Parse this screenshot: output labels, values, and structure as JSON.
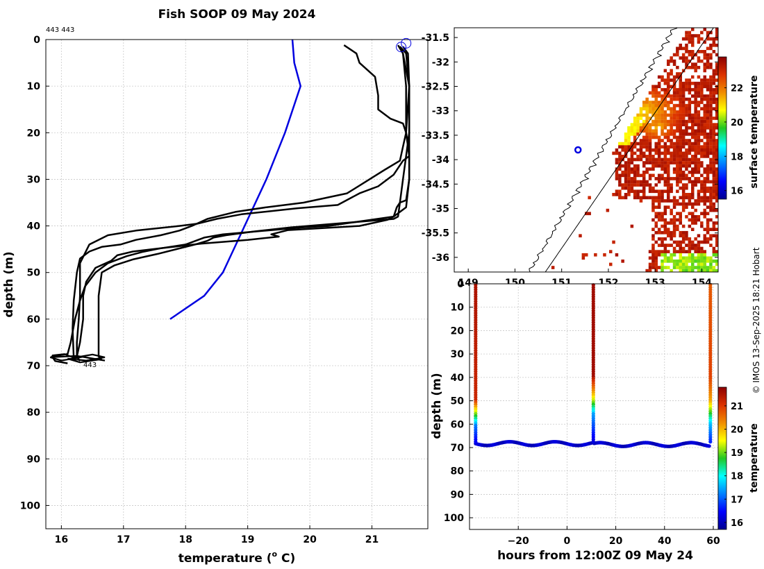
{
  "title": "Fish SOOP 09 May 2024",
  "credit": "© IMOS 13-Sep-2025 18:21 Hobart",
  "chart_data": [
    {
      "id": "profile",
      "type": "line",
      "top_label": "443 443",
      "end_label": "443",
      "xlabel": "temperature (°C)",
      "xlabel_main": "temperature (",
      "xlabel_sup": "o",
      "xlabel_tail": " C)",
      "ylabel": "depth (m)",
      "xlim": [
        15.75,
        21.9
      ],
      "ylim": [
        105,
        0
      ],
      "xticks": [
        16,
        17,
        18,
        19,
        20,
        21
      ],
      "yticks": [
        0,
        10,
        20,
        30,
        40,
        50,
        60,
        70,
        80,
        90,
        100
      ],
      "grid": true,
      "series": [
        {
          "name": "climatology",
          "color": "#0000e0",
          "points": [
            [
              19.72,
              0
            ],
            [
              19.75,
              5
            ],
            [
              19.85,
              10
            ],
            [
              19.6,
              20
            ],
            [
              19.3,
              30
            ],
            [
              18.95,
              40
            ],
            [
              18.6,
              50
            ],
            [
              18.3,
              55
            ],
            [
              17.75,
              60
            ]
          ]
        },
        {
          "name": "cast 1",
          "color": "#000000",
          "points": [
            [
              20.55,
              1.2
            ],
            [
              20.75,
              3
            ],
            [
              20.8,
              5
            ],
            [
              21.05,
              8
            ],
            [
              21.1,
              12
            ],
            [
              21.1,
              15
            ],
            [
              21.3,
              17
            ],
            [
              21.5,
              18
            ],
            [
              21.55,
              20
            ],
            [
              21.6,
              24
            ],
            [
              21.6,
              30
            ],
            [
              21.55,
              36
            ],
            [
              21.35,
              38
            ],
            [
              20.3,
              40
            ],
            [
              19.9,
              40.3
            ],
            [
              18.6,
              41.8
            ],
            [
              18.3,
              42.5
            ],
            [
              18.0,
              44
            ],
            [
              17.6,
              44.8
            ],
            [
              17.15,
              45.5
            ],
            [
              16.9,
              46.3
            ],
            [
              16.8,
              47.5
            ],
            [
              16.55,
              49
            ],
            [
              16.4,
              52
            ],
            [
              16.35,
              55
            ],
            [
              16.35,
              60
            ],
            [
              16.3,
              65
            ],
            [
              16.25,
              68
            ],
            [
              16.3,
              69
            ]
          ]
        },
        {
          "name": "cast 2",
          "color": "#000000",
          "points": [
            [
              21.42,
              1.2
            ],
            [
              21.5,
              3
            ],
            [
              21.6,
              10
            ],
            [
              21.55,
              20
            ],
            [
              21.6,
              25
            ],
            [
              21.5,
              26
            ],
            [
              21.35,
              29
            ],
            [
              21.1,
              31.5
            ],
            [
              20.8,
              33
            ],
            [
              20.45,
              35.5
            ],
            [
              19.8,
              36.2
            ],
            [
              18.9,
              37.5
            ],
            [
              18.5,
              38.5
            ],
            [
              18.2,
              39.5
            ],
            [
              17.9,
              40
            ],
            [
              17.2,
              41
            ],
            [
              16.75,
              42
            ],
            [
              16.45,
              44
            ],
            [
              16.3,
              48
            ],
            [
              16.3,
              55
            ],
            [
              16.28,
              60
            ],
            [
              16.25,
              65
            ],
            [
              16.25,
              68.5
            ]
          ]
        },
        {
          "name": "cast 3",
          "color": "#000000",
          "points": [
            [
              21.45,
              1.5
            ],
            [
              21.5,
              3
            ],
            [
              21.55,
              10
            ],
            [
              21.55,
              20
            ],
            [
              21.5,
              23
            ],
            [
              21.45,
              26
            ],
            [
              21.2,
              28
            ],
            [
              20.9,
              30.5
            ],
            [
              20.6,
              33
            ],
            [
              19.9,
              35
            ],
            [
              19.3,
              36
            ],
            [
              18.8,
              37
            ],
            [
              18.35,
              38.5
            ],
            [
              18.1,
              40
            ],
            [
              17.9,
              41
            ],
            [
              17.6,
              42
            ],
            [
              17.2,
              43
            ],
            [
              16.95,
              44
            ],
            [
              16.65,
              44.5
            ],
            [
              16.45,
              45.5
            ],
            [
              16.3,
              47
            ],
            [
              16.25,
              50
            ],
            [
              16.2,
              56
            ],
            [
              16.18,
              62
            ],
            [
              16.2,
              68.5
            ]
          ]
        },
        {
          "name": "cast 4",
          "color": "#000000",
          "points": [
            [
              21.45,
              1.5
            ],
            [
              21.55,
              3
            ],
            [
              21.6,
              10
            ],
            [
              21.6,
              20
            ],
            [
              21.6,
              30
            ],
            [
              21.55,
              34.5
            ],
            [
              21.45,
              35
            ],
            [
              21.4,
              36
            ],
            [
              21.35,
              38
            ],
            [
              21.25,
              38.7
            ],
            [
              20.8,
              40
            ],
            [
              19.65,
              40.9
            ],
            [
              19.38,
              41.8
            ],
            [
              19.5,
              42.3
            ],
            [
              19.0,
              43
            ],
            [
              18.25,
              43.8
            ],
            [
              17.6,
              44.8
            ],
            [
              17.3,
              45.6
            ],
            [
              17.05,
              46.5
            ],
            [
              16.75,
              48
            ],
            [
              16.55,
              50
            ],
            [
              16.38,
              53
            ],
            [
              16.3,
              56
            ],
            [
              16.22,
              60
            ],
            [
              16.15,
              65
            ],
            [
              16.1,
              67.5
            ],
            [
              15.85,
              68
            ],
            [
              15.9,
              69
            ],
            [
              16.1,
              69.5
            ]
          ]
        },
        {
          "name": "cast 5",
          "color": "#000000",
          "points": [
            [
              21.5,
              1.5
            ],
            [
              21.58,
              3
            ],
            [
              21.6,
              10
            ],
            [
              21.6,
              20
            ],
            [
              21.55,
              25
            ],
            [
              21.5,
              30
            ],
            [
              21.45,
              35
            ],
            [
              21.42,
              38
            ],
            [
              21.35,
              38.5
            ],
            [
              20.7,
              39.2
            ],
            [
              19.7,
              40.3
            ],
            [
              19.1,
              41.2
            ],
            [
              18.65,
              42
            ],
            [
              18.45,
              42.5
            ],
            [
              18.35,
              43.2
            ],
            [
              18.15,
              44
            ],
            [
              17.85,
              45
            ],
            [
              17.55,
              46
            ],
            [
              17.15,
              47.2
            ],
            [
              16.85,
              48.5
            ],
            [
              16.65,
              50
            ],
            [
              16.6,
              55
            ],
            [
              16.6,
              60
            ],
            [
              16.6,
              65
            ],
            [
              16.6,
              68
            ],
            [
              16.65,
              68.8
            ]
          ]
        }
      ]
    },
    {
      "id": "map",
      "type": "heatmap",
      "colorbar_label": "surface temperature",
      "colorbar_ticks": [
        16,
        18,
        20,
        22
      ],
      "colorbar_range": [
        15.5,
        23.8
      ],
      "xticks": [
        149,
        150,
        151,
        152,
        153,
        154
      ],
      "yticks": [
        -31.5,
        -32,
        -32.5,
        -33,
        -33.5,
        -34,
        -34.5,
        -35,
        -35.5,
        -36
      ],
      "xlim": [
        148.7,
        154.35
      ],
      "ylim": [
        -36.3,
        -31.3
      ],
      "ship_position": {
        "lon": 151.35,
        "lat": -33.8
      }
    },
    {
      "id": "timeseries",
      "type": "scatter",
      "xlabel": "hours from 12:00Z 09 May 24",
      "ylabel": "depth (m)",
      "colorbar_label": "temperature",
      "colorbar_ticks": [
        16,
        17,
        18,
        19,
        20,
        21
      ],
      "colorbar_range": [
        15.7,
        21.8
      ],
      "xticks": [
        -20,
        0,
        20,
        40,
        60
      ],
      "yticks": [
        0,
        10,
        20,
        30,
        40,
        50,
        60,
        70,
        80,
        90,
        100
      ],
      "xlim": [
        -40,
        62
      ],
      "ylim": [
        105,
        0
      ],
      "profiles_at_hours": [
        -37.5,
        10.8,
        58.8
      ]
    }
  ]
}
